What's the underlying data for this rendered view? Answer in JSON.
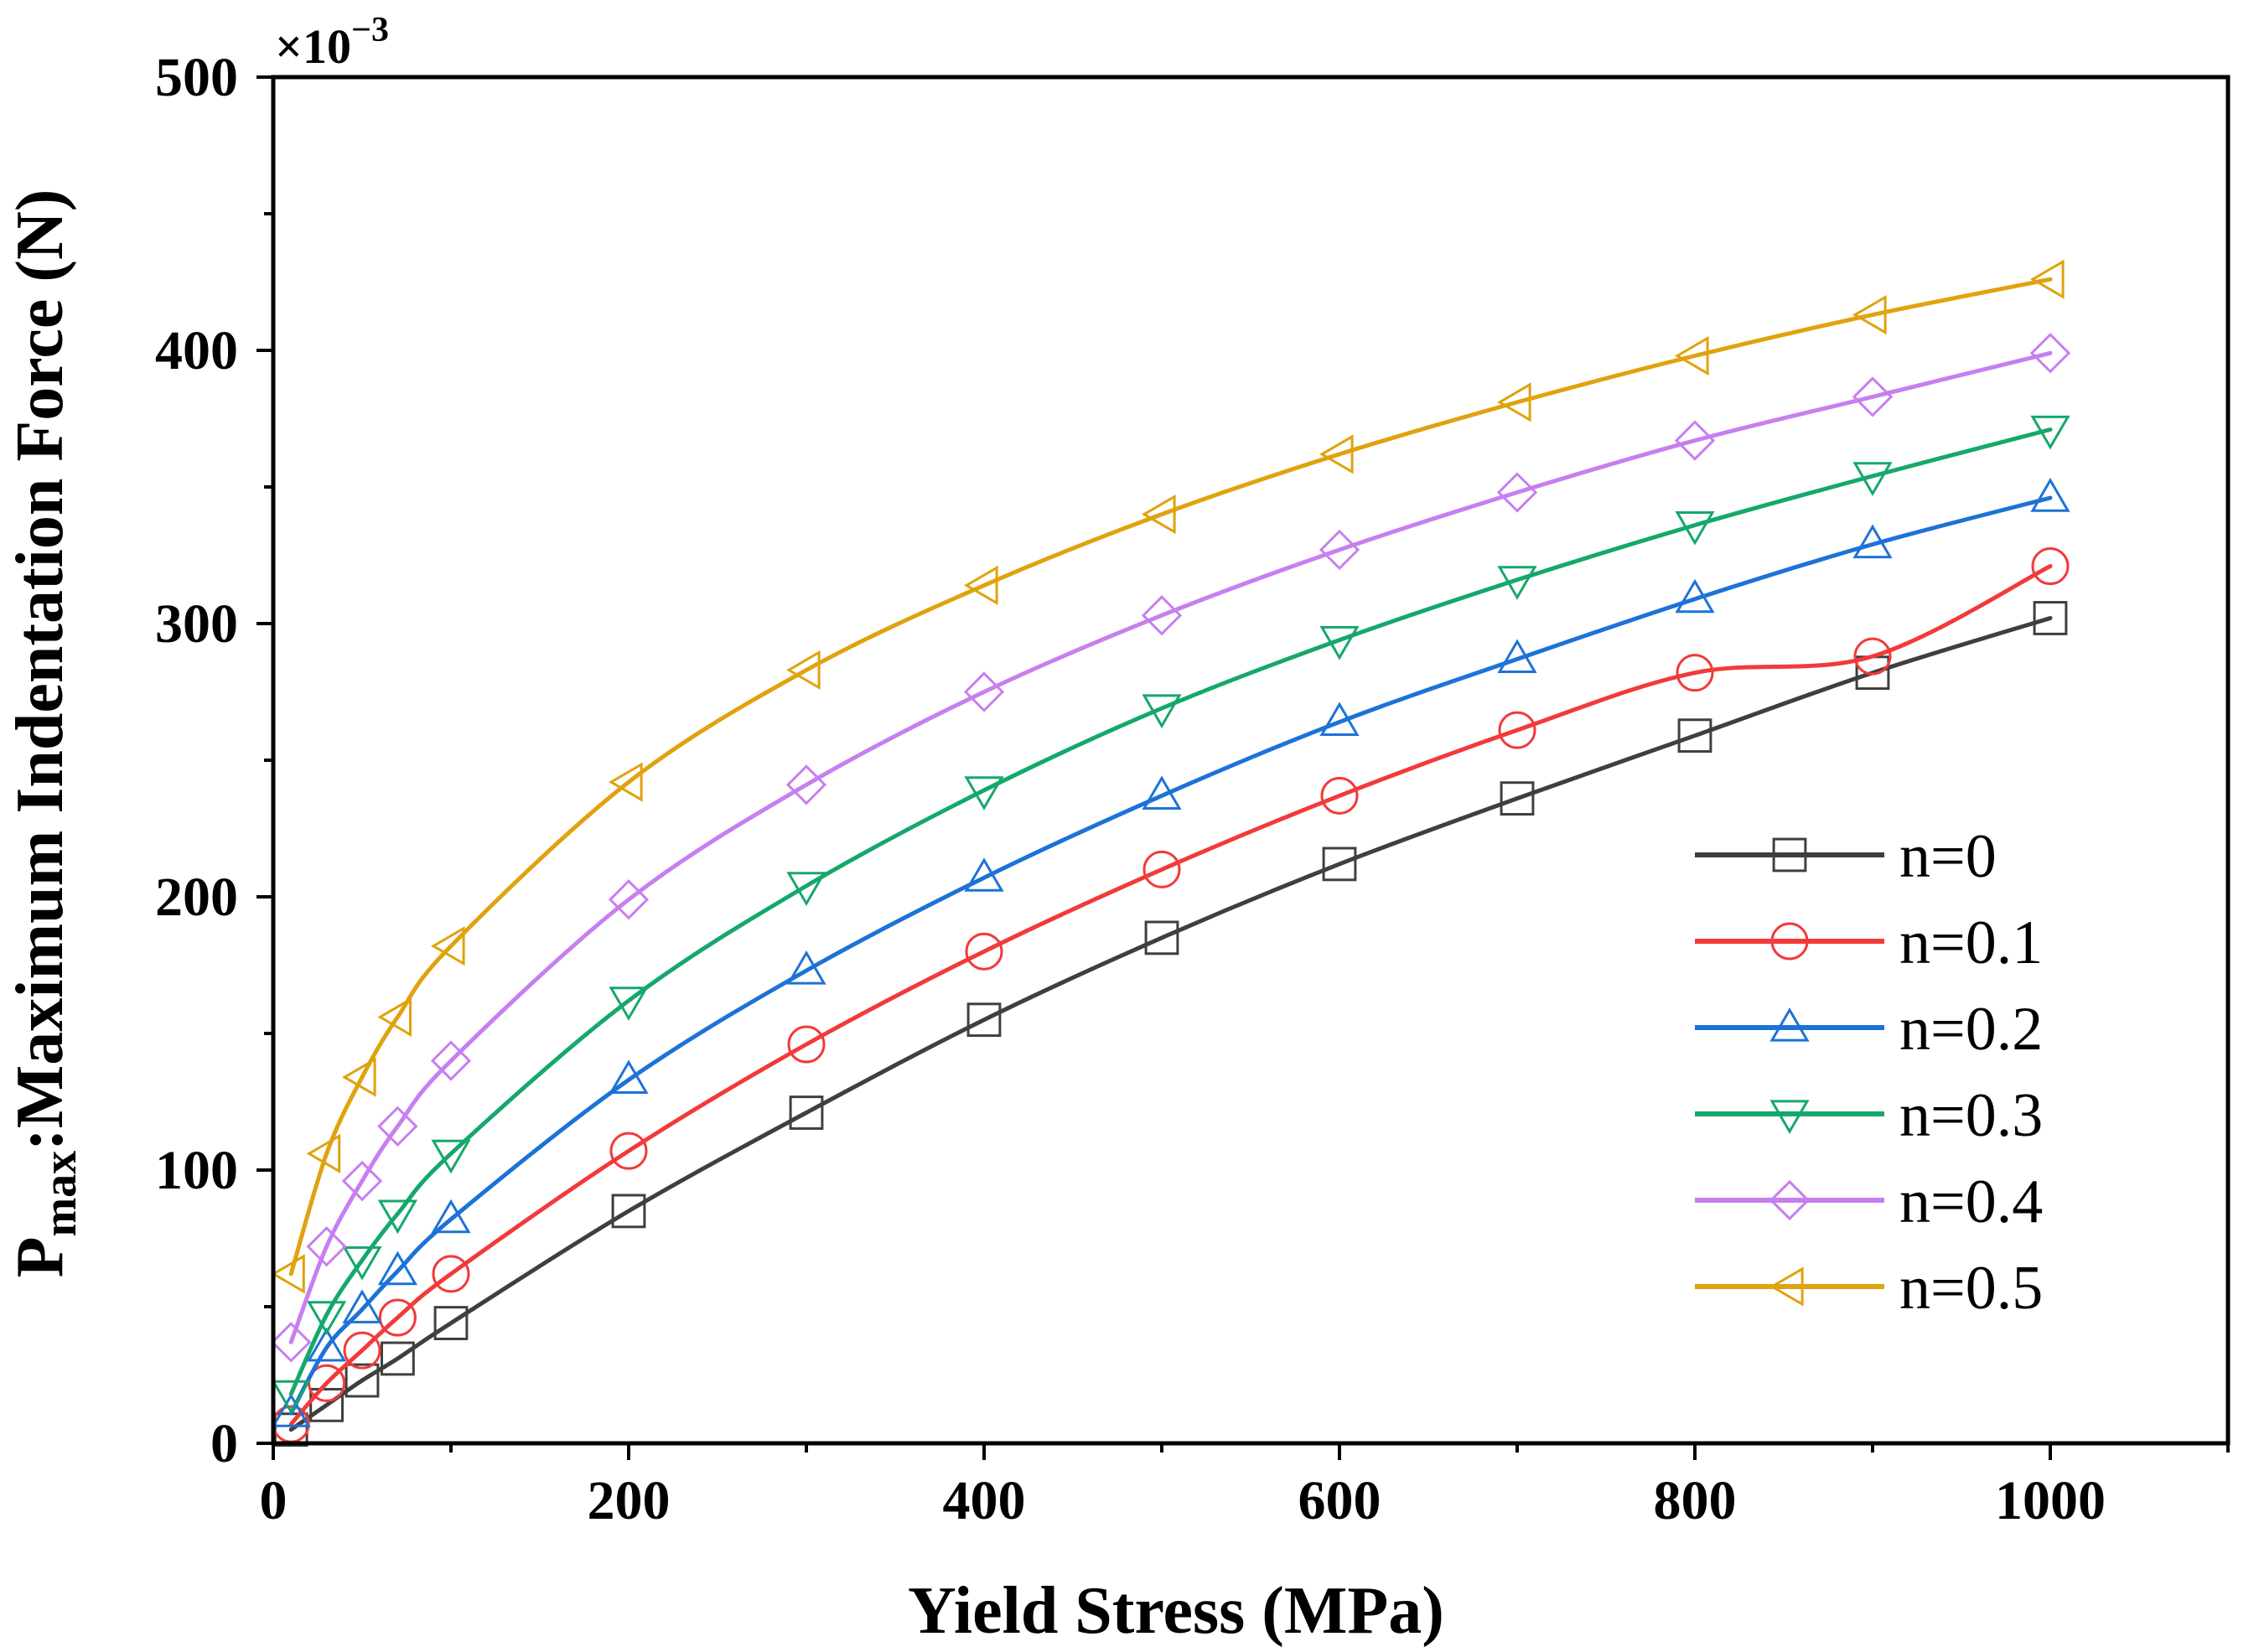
{
  "chart_data": {
    "type": "line",
    "title": "",
    "xlabel": "Yield Stress (MPa)",
    "ylabel": {
      "main": "P",
      "sub": "max",
      "rest": ":Maximum Indentation Force (N)"
    },
    "y_multiplier": {
      "base": "×10",
      "exponent": "−3"
    },
    "xlim": [
      0,
      1100
    ],
    "ylim": [
      0,
      500
    ],
    "x_ticks": [
      0,
      200,
      400,
      600,
      800,
      1000
    ],
    "y_ticks": [
      0,
      100,
      200,
      300,
      400,
      500
    ],
    "legend_position": "lower-right",
    "x": [
      10,
      30,
      50,
      70,
      100,
      200,
      300,
      400,
      500,
      600,
      700,
      800,
      900,
      1000
    ],
    "series": [
      {
        "name": "n=0",
        "marker": "square",
        "color": "#3f3f3f",
        "values": [
          5,
          14,
          23,
          31,
          44,
          85,
          121,
          155,
          185,
          212,
          236,
          259,
          282,
          302
        ]
      },
      {
        "name": "n=0.1",
        "marker": "circle",
        "color": "#f23a3a",
        "values": [
          7,
          22,
          34,
          46,
          62,
          107,
          146,
          180,
          210,
          237,
          261,
          282,
          288,
          321
        ]
      },
      {
        "name": "n=0.2",
        "marker": "triangle-up",
        "color": "#1d72d8",
        "values": [
          11,
          35,
          49,
          63,
          82,
          133,
          173,
          207,
          237,
          264,
          287,
          309,
          329,
          346
        ]
      },
      {
        "name": "n=0.3",
        "marker": "triangle-down",
        "color": "#15a86a",
        "values": [
          18,
          47,
          67,
          84,
          106,
          162,
          204,
          239,
          269,
          294,
          316,
          336,
          354,
          371
        ]
      },
      {
        "name": "n=0.4",
        "marker": "diamond",
        "color": "#c77ff0",
        "values": [
          37,
          72,
          96,
          116,
          140,
          199,
          241,
          275,
          303,
          327,
          348,
          367,
          383,
          399
        ]
      },
      {
        "name": "n=0.5",
        "marker": "triangle-left",
        "color": "#e0a20e",
        "values": [
          62,
          106,
          134,
          156,
          182,
          242,
          283,
          314,
          340,
          362,
          381,
          398,
          413,
          426
        ]
      }
    ]
  }
}
